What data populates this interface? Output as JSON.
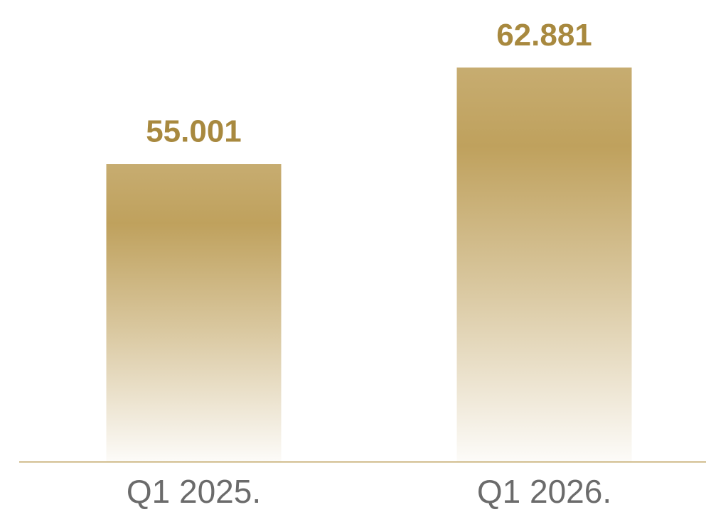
{
  "chart_data": {
    "type": "bar",
    "categories": [
      "Q1 2025.",
      "Q1 2026."
    ],
    "values": [
      55.001,
      62.881
    ],
    "color": "#bfa15d",
    "ylim": [
      30.7,
      68.4
    ]
  }
}
